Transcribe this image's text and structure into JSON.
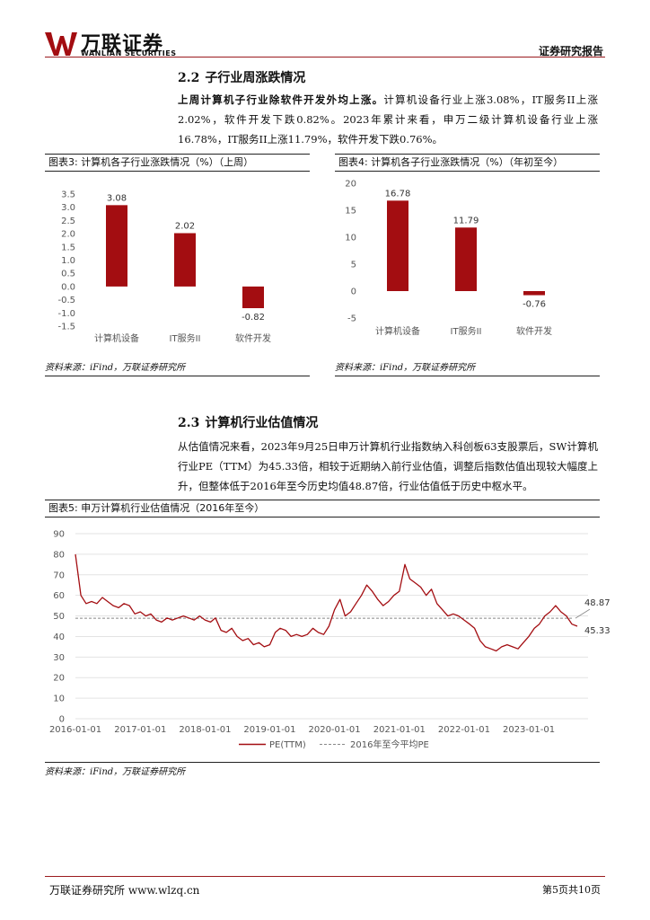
{
  "header": {
    "brand_cn": "万联证券",
    "brand_en": "WANLIAN SECURITIES",
    "report_type": "证券研究报告"
  },
  "section22": {
    "number": "2.2",
    "title": "子行业周涨跌情况",
    "bold_lead": "上周计算机子行业除软件开发外均上涨。",
    "body": "计算机设备行业上涨3.08%，IT服务II上涨2.02%，软件开发下跌0.82%。2023年累计来看，申万二级计算机设备行业上涨16.78%，IT服务II上涨11.79%，软件开发下跌0.76%。"
  },
  "fig3": {
    "caption": "图表3: 计算机各子行业涨跌情况（%）（上周）",
    "source": "资料来源：iFind，万联证券研究所"
  },
  "fig4": {
    "caption": "图表4: 计算机各子行业涨跌情况（%）（年初至今）",
    "source": "资料来源：iFind，万联证券研究所"
  },
  "section23": {
    "number": "2.3",
    "title": "计算机行业估值情况",
    "body": "从估值情况来看，2023年9月25日申万计算机行业指数纳入科创板63支股票后，SW计算机行业PE（TTM）为45.33倍，相较于近期纳入前行业估值，调整后指数估值出现较大幅度上升，但整体低于2016年至今历史均值48.87倍，行业估值低于历史中枢水平。"
  },
  "fig5": {
    "caption": "图表5: 申万计算机行业估值情况（2016年至今）",
    "source": "资料来源：iFind，万联证券研究所"
  },
  "footer": {
    "left": "万联证券研究所 www.wlzq.cn",
    "right": "第5页共10页"
  },
  "chart_data": [
    {
      "type": "bar",
      "categories": [
        "计算机设备",
        "IT服务II",
        "软件开发"
      ],
      "values": [
        3.08,
        2.02,
        -0.82
      ],
      "value_labels": [
        "3.08",
        "2.02",
        "-0.82"
      ],
      "ylim": [
        -1.5,
        3.5
      ],
      "yticks": [
        "3.5",
        "3.0",
        "2.5",
        "2.0",
        "1.5",
        "1.0",
        "0.5",
        "0.0",
        "-0.5",
        "-1.0",
        "-1.5"
      ],
      "grid": false,
      "color": "#a30d11"
    },
    {
      "type": "bar",
      "categories": [
        "计算机设备",
        "IT服务II",
        "软件开发"
      ],
      "values": [
        16.78,
        11.79,
        -0.76
      ],
      "value_labels": [
        "16.78",
        "11.79",
        "-0.76"
      ],
      "ylim": [
        -5,
        20
      ],
      "yticks": [
        "20",
        "15",
        "10",
        "5",
        "0",
        "-5"
      ],
      "grid": false,
      "color": "#a30d11"
    },
    {
      "type": "line",
      "ylim": [
        0,
        90
      ],
      "yticks": [
        "90",
        "80",
        "70",
        "60",
        "50",
        "40",
        "30",
        "20",
        "10",
        "0"
      ],
      "xticks": [
        "2016-01-01",
        "2017-01-01",
        "2018-01-01",
        "2019-01-01",
        "2020-01-01",
        "2021-01-01",
        "2022-01-01",
        "2023-01-01"
      ],
      "grid": true,
      "legend_position": "bottom",
      "series": [
        {
          "name": "PE(TTM)",
          "color": "#a30d11",
          "x": [
            "2016-01",
            "2016-02",
            "2016-03",
            "2016-04",
            "2016-05",
            "2016-06",
            "2016-07",
            "2016-08",
            "2016-09",
            "2016-10",
            "2016-11",
            "2016-12",
            "2017-01",
            "2017-02",
            "2017-03",
            "2017-04",
            "2017-05",
            "2017-06",
            "2017-07",
            "2017-08",
            "2017-09",
            "2017-10",
            "2017-11",
            "2017-12",
            "2018-01",
            "2018-02",
            "2018-03",
            "2018-04",
            "2018-05",
            "2018-06",
            "2018-07",
            "2018-08",
            "2018-09",
            "2018-10",
            "2018-11",
            "2018-12",
            "2019-01",
            "2019-02",
            "2019-03",
            "2019-04",
            "2019-05",
            "2019-06",
            "2019-07",
            "2019-08",
            "2019-09",
            "2019-10",
            "2019-11",
            "2019-12",
            "2020-01",
            "2020-02",
            "2020-03",
            "2020-04",
            "2020-05",
            "2020-06",
            "2020-07",
            "2020-08",
            "2020-09",
            "2020-10",
            "2020-11",
            "2020-12",
            "2021-01",
            "2021-02",
            "2021-03",
            "2021-04",
            "2021-05",
            "2021-06",
            "2021-07",
            "2021-08",
            "2021-09",
            "2021-10",
            "2021-11",
            "2021-12",
            "2022-01",
            "2022-02",
            "2022-03",
            "2022-04",
            "2022-05",
            "2022-06",
            "2022-07",
            "2022-08",
            "2022-09",
            "2022-10",
            "2022-11",
            "2022-12",
            "2023-01",
            "2023-02",
            "2023-03",
            "2023-04",
            "2023-05",
            "2023-06",
            "2023-07",
            "2023-08",
            "2023-09",
            "2023-10"
          ],
          "values": [
            80,
            60,
            56,
            57,
            56,
            59,
            57,
            55,
            54,
            56,
            55,
            51,
            52,
            50,
            51,
            48,
            47,
            49,
            48,
            49,
            50,
            49,
            48,
            50,
            48,
            47,
            49,
            43,
            42,
            44,
            40,
            38,
            39,
            36,
            37,
            35,
            36,
            42,
            44,
            43,
            40,
            41,
            40,
            41,
            44,
            42,
            41,
            45,
            53,
            58,
            50,
            52,
            56,
            60,
            65,
            62,
            58,
            55,
            57,
            60,
            62,
            75,
            68,
            66,
            64,
            60,
            63,
            56,
            53,
            50,
            51,
            50,
            48,
            46,
            44,
            38,
            35,
            34,
            33,
            35,
            36,
            35,
            34,
            37,
            40,
            44,
            46,
            50,
            52,
            55,
            52,
            50,
            46,
            45
          ],
          "end_label": "45.33"
        },
        {
          "name": "2016年至今平均PE",
          "color": "#888888",
          "constant": 48.87,
          "end_label": "48.87"
        }
      ]
    }
  ]
}
